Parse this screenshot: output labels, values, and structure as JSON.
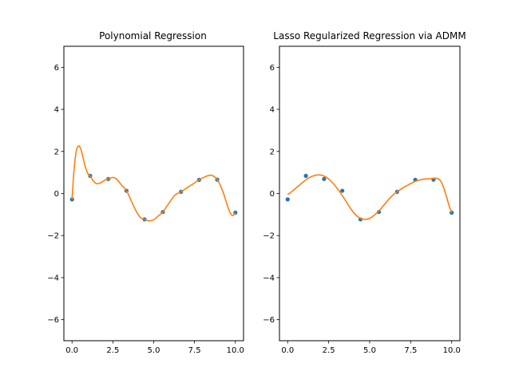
{
  "chart_data": [
    {
      "type": "scatter",
      "title": "Polynomial Regression",
      "xlabel": "",
      "ylabel": "",
      "xlim": [
        -0.5,
        10.5
      ],
      "ylim": [
        -7,
        7
      ],
      "xticks": [
        0.0,
        2.5,
        5.0,
        7.5,
        10.0
      ],
      "xtick_labels": [
        "0.0",
        "2.5",
        "5.0",
        "7.5",
        "10.0"
      ],
      "yticks": [
        -6,
        -4,
        -2,
        0,
        2,
        4,
        6
      ],
      "ytick_labels": [
        "−6",
        "−4",
        "−2",
        "0",
        "2",
        "4",
        "6"
      ],
      "grid": false,
      "points": {
        "color": "#1f77b4",
        "x": [
          0.0,
          1.11,
          2.22,
          3.33,
          4.44,
          5.56,
          6.67,
          7.78,
          8.89,
          10.0
        ],
        "y": [
          -0.28,
          0.84,
          0.69,
          0.13,
          -1.23,
          -0.88,
          0.08,
          0.65,
          0.66,
          -0.91
        ]
      },
      "fit": {
        "color": "#ff7f0e",
        "x": [
          0.0,
          0.1,
          0.2,
          0.3,
          0.45,
          0.6,
          0.8,
          1.0,
          1.11,
          1.3,
          1.5,
          1.7,
          1.9,
          2.1,
          2.22,
          2.4,
          2.6,
          2.8,
          3.0,
          3.33,
          3.6,
          3.9,
          4.2,
          4.44,
          4.7,
          5.0,
          5.3,
          5.56,
          5.9,
          6.3,
          6.67,
          7.0,
          7.4,
          7.78,
          8.1,
          8.4,
          8.6,
          8.89,
          9.1,
          9.3,
          9.5,
          9.7,
          9.85,
          10.0
        ],
        "y": [
          -0.28,
          0.9,
          1.7,
          2.15,
          2.25,
          1.95,
          1.3,
          0.9,
          0.84,
          0.6,
          0.47,
          0.49,
          0.58,
          0.67,
          0.69,
          0.75,
          0.75,
          0.63,
          0.43,
          0.13,
          -0.3,
          -0.8,
          -1.15,
          -1.23,
          -1.3,
          -1.25,
          -1.05,
          -0.88,
          -0.5,
          -0.08,
          0.08,
          0.25,
          0.45,
          0.65,
          0.78,
          0.86,
          0.85,
          0.66,
          0.35,
          -0.05,
          -0.55,
          -0.95,
          -1.05,
          -0.91
        ]
      }
    },
    {
      "type": "scatter",
      "title": "Lasso Regularized Regression via ADMM",
      "xlabel": "",
      "ylabel": "",
      "xlim": [
        -0.5,
        10.5
      ],
      "ylim": [
        -7,
        7
      ],
      "xticks": [
        0.0,
        2.5,
        5.0,
        7.5,
        10.0
      ],
      "xtick_labels": [
        "0.0",
        "2.5",
        "5.0",
        "7.5",
        "10.0"
      ],
      "yticks": [
        -6,
        -4,
        -2,
        0,
        2,
        4,
        6
      ],
      "ytick_labels": [
        "−6",
        "−4",
        "−2",
        "0",
        "2",
        "4",
        "6"
      ],
      "grid": false,
      "points": {
        "color": "#1f77b4",
        "x": [
          0.0,
          1.11,
          2.22,
          3.33,
          4.44,
          5.56,
          6.67,
          7.78,
          8.89,
          10.0
        ],
        "y": [
          -0.28,
          0.84,
          0.69,
          0.13,
          -1.23,
          -0.88,
          0.08,
          0.65,
          0.66,
          -0.91
        ]
      },
      "fit": {
        "color": "#ff7f0e",
        "x": [
          0.0,
          0.3,
          0.6,
          0.9,
          1.2,
          1.5,
          1.8,
          2.0,
          2.3,
          2.6,
          2.9,
          3.2,
          3.5,
          3.8,
          4.1,
          4.4,
          4.7,
          5.0,
          5.3,
          5.6,
          5.9,
          6.2,
          6.5,
          6.8,
          7.1,
          7.4,
          7.7,
          8.0,
          8.3,
          8.6,
          8.9,
          9.1,
          9.3,
          9.5,
          9.7,
          9.85,
          10.0
        ],
        "y": [
          -0.05,
          0.12,
          0.32,
          0.52,
          0.7,
          0.82,
          0.88,
          0.88,
          0.8,
          0.62,
          0.36,
          0.05,
          -0.3,
          -0.67,
          -0.98,
          -1.17,
          -1.23,
          -1.18,
          -1.02,
          -0.8,
          -0.52,
          -0.25,
          -0.02,
          0.15,
          0.3,
          0.43,
          0.55,
          0.63,
          0.68,
          0.7,
          0.72,
          0.72,
          0.62,
          0.3,
          -0.2,
          -0.6,
          -0.91
        ]
      }
    }
  ]
}
